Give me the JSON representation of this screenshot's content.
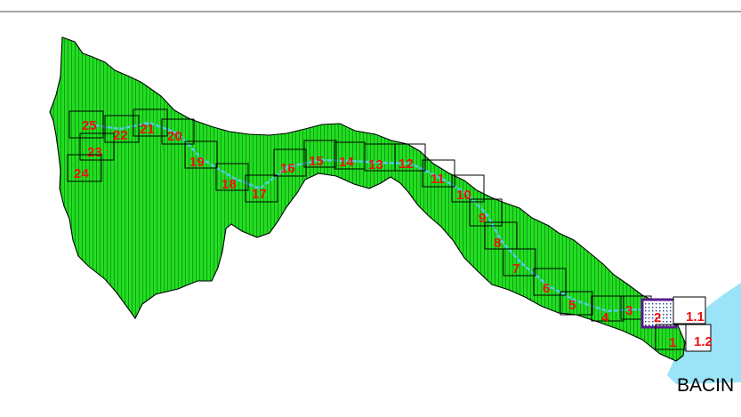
{
  "map": {
    "cell_labels": [
      "25",
      "23",
      "24",
      "22",
      "21",
      "20",
      "19",
      "18",
      "17",
      "16",
      "15",
      "14",
      "13",
      "12",
      "11",
      "10",
      "9",
      "8",
      "7",
      "6",
      "5",
      "4",
      "3",
      "2",
      "1.1",
      "1",
      "1.2"
    ],
    "basin_label": "BACIN",
    "colors": {
      "land": "#22dd22",
      "land_hatch": "#118a11",
      "river": "#55c8e8",
      "water": "#9be3f7",
      "label": "#ee1111",
      "grid_box": "#000000",
      "selected_box": "#5a1a8a"
    },
    "selected_cell": "2"
  }
}
